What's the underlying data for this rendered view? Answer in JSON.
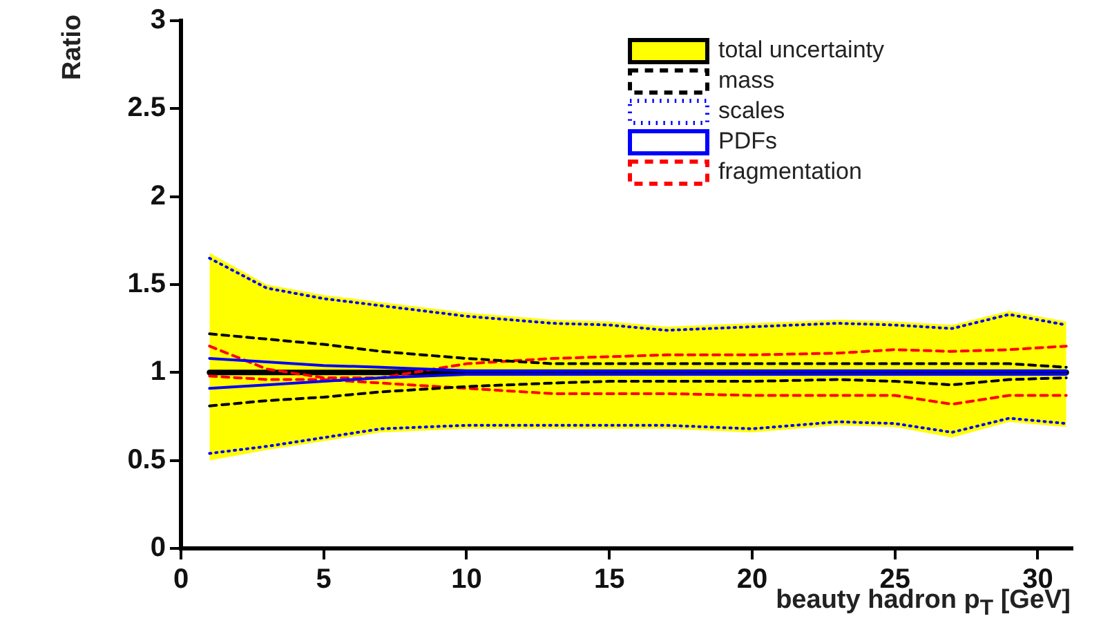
{
  "chart_data": {
    "type": "line",
    "xlabel": "beauty hadron p$_{T}$ [GeV]",
    "ylabel": "Ratio",
    "x": [
      1,
      3,
      5,
      7,
      10,
      13,
      15,
      17,
      20,
      23,
      25,
      27,
      29,
      31
    ],
    "xlim": [
      0,
      31.2
    ],
    "xticks": [
      0,
      5,
      10,
      15,
      20,
      25,
      30
    ],
    "ylim": [
      0,
      3
    ],
    "yticks": [
      0,
      0.5,
      1,
      1.5,
      2,
      2.5,
      3
    ],
    "grid": false,
    "legend": "top right",
    "marker": "none",
    "series": [
      {
        "name": "total uncertainty",
        "color": "#000000",
        "line_style": "solid",
        "values": [
          1,
          1,
          1,
          1,
          1,
          1,
          1,
          1,
          1,
          1,
          1,
          1,
          1,
          1
        ],
        "lower": [
          0.5,
          0.56,
          0.61,
          0.66,
          0.68,
          0.68,
          0.68,
          0.68,
          0.66,
          0.7,
          0.69,
          0.63,
          0.72,
          0.69
        ],
        "upper": [
          1.68,
          1.5,
          1.44,
          1.4,
          1.34,
          1.3,
          1.29,
          1.26,
          1.28,
          1.3,
          1.29,
          1.27,
          1.35,
          1.29
        ]
      },
      {
        "name": "mass",
        "color": "#000000",
        "line_style": "dashed",
        "values": [
          1.22,
          1.19,
          1.16,
          1.12,
          1.08,
          1.05,
          1.05,
          1.05,
          1.05,
          1.05,
          1.05,
          1.05,
          1.05,
          1.03
        ]
      },
      {
        "color": "#000000",
        "line_style": "dashed",
        "values": [
          0.81,
          0.84,
          0.86,
          0.89,
          0.92,
          0.94,
          0.95,
          0.95,
          0.95,
          0.96,
          0.95,
          0.93,
          0.96,
          0.97
        ]
      },
      {
        "name": "scales",
        "color": "#0000ff",
        "line_style": "dotted",
        "values": [
          1.65,
          1.48,
          1.42,
          1.38,
          1.32,
          1.28,
          1.27,
          1.24,
          1.26,
          1.28,
          1.27,
          1.25,
          1.33,
          1.27
        ]
      },
      {
        "color": "#0000ff",
        "line_style": "dotted",
        "values": [
          0.54,
          0.58,
          0.63,
          0.68,
          0.7,
          0.7,
          0.7,
          0.7,
          0.68,
          0.72,
          0.71,
          0.66,
          0.74,
          0.71
        ]
      },
      {
        "name": "PDFs",
        "color": "#0000ff",
        "line_style": "solid",
        "values": [
          1.08,
          1.06,
          1.04,
          1.03,
          1.01,
          1.01,
          1.01,
          1.01,
          1.01,
          1.01,
          1.01,
          1.01,
          1.01,
          1.01
        ]
      },
      {
        "color": "#0000ff",
        "line_style": "solid",
        "values": [
          0.91,
          0.93,
          0.95,
          0.97,
          0.99,
          0.99,
          0.99,
          0.99,
          0.99,
          0.99,
          0.99,
          0.99,
          0.99,
          0.99
        ]
      },
      {
        "name": "fragmentation",
        "color": "#ff0000",
        "line_style": "dashed",
        "values": [
          1.15,
          1.02,
          0.97,
          0.97,
          1.05,
          1.08,
          1.09,
          1.1,
          1.1,
          1.11,
          1.13,
          1.12,
          1.13,
          1.15
        ]
      },
      {
        "color": "#ff0000",
        "line_style": "dashed",
        "values": [
          0.98,
          0.96,
          0.96,
          0.94,
          0.91,
          0.88,
          0.88,
          0.88,
          0.87,
          0.87,
          0.87,
          0.82,
          0.87,
          0.87
        ]
      }
    ]
  }
}
